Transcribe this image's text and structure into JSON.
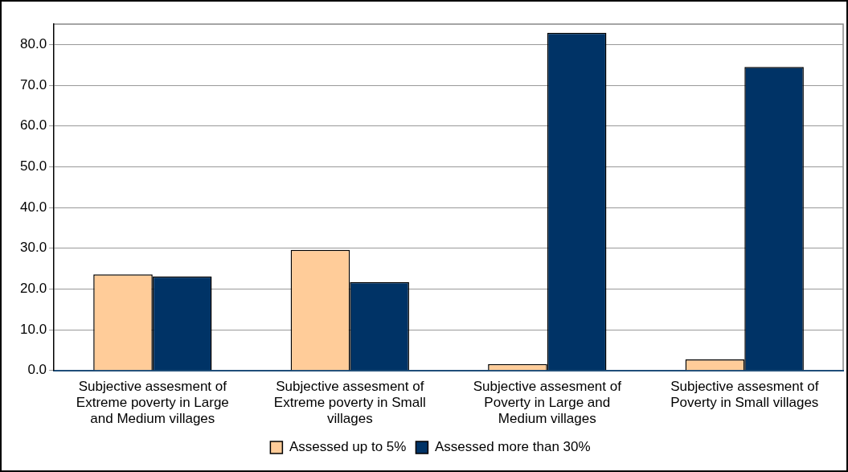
{
  "chart_data": {
    "type": "bar",
    "categories": [
      "Subjective assesment of Extreme poverty in Large and Medium villages",
      "Subjective assesment of Extreme poverty in Small villages",
      "Subjective assesment of Poverty in Large and Medium villages",
      "Subjective assesment of Poverty in Small villages"
    ],
    "series": [
      {
        "name": "Assessed up to 5%",
        "color": "#ffcc99",
        "values": [
          23.6,
          29.6,
          1.6,
          2.7
        ]
      },
      {
        "name": "Assessed more than 30%",
        "color": "#003366",
        "values": [
          23.1,
          21.7,
          82.9,
          74.5
        ]
      }
    ],
    "ylim": [
      0,
      85
    ],
    "yticks": [
      {
        "value": 0,
        "label": "0.0"
      },
      {
        "value": 10,
        "label": "10.0"
      },
      {
        "value": 20,
        "label": "20.0"
      },
      {
        "value": 30,
        "label": "30.0"
      },
      {
        "value": 40,
        "label": "40.0"
      },
      {
        "value": 50,
        "label": "50.0"
      },
      {
        "value": 60,
        "label": "60.0"
      },
      {
        "value": 70,
        "label": "70.0"
      },
      {
        "value": 80,
        "label": "80.0"
      }
    ],
    "grid": "y",
    "legend": "bottom"
  }
}
